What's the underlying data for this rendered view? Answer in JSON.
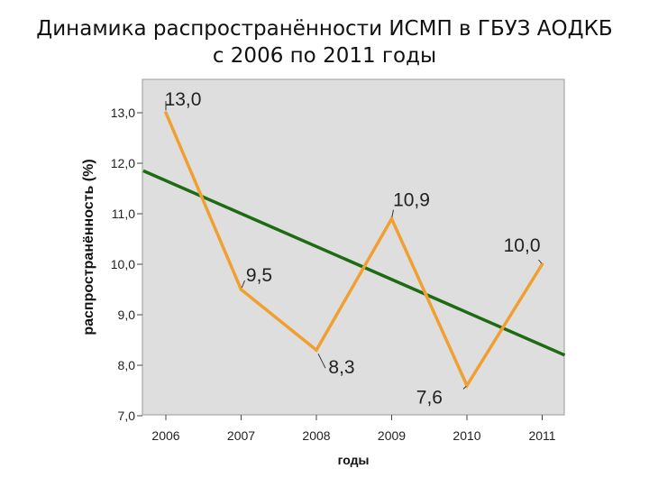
{
  "page": {
    "title_line1": "Динамика распространённости ИСМП в ГБУЗ АОДКБ",
    "title_line2": "с 2006 по 2011 годы"
  },
  "chart_data": {
    "type": "line",
    "title": "Динамика распространённости ИСМП в ГБУЗ АОДКБ с 2006 по 2011 годы",
    "xlabel": "годы",
    "ylabel": "распространённость (%)",
    "categories": [
      "2006",
      "2007",
      "2008",
      "2009",
      "2010",
      "2011"
    ],
    "series": [
      {
        "values": [
          13.0,
          9.5,
          8.3,
          10.9,
          7.6,
          10.0
        ],
        "color": "#f0a030",
        "data_labels": [
          "13,0",
          "9,5",
          "8,3",
          "10,9",
          "7,6",
          "10,0"
        ]
      },
      {
        "type": "trendline",
        "color": "#1e6b14",
        "x_range": [
          2005.7,
          2011.3
        ],
        "y_range": [
          11.85,
          8.2
        ]
      }
    ],
    "ylim": [
      7.0,
      13.0
    ],
    "yticks": [
      7.0,
      8.0,
      9.0,
      10.0,
      11.0,
      12.0,
      13.0
    ],
    "ytick_labels": [
      "7,0",
      "8,0",
      "9,0",
      "10,0",
      "11,0",
      "12,0",
      "13,0"
    ],
    "plot_background": "#dedede",
    "grid": false,
    "legend": "none"
  }
}
